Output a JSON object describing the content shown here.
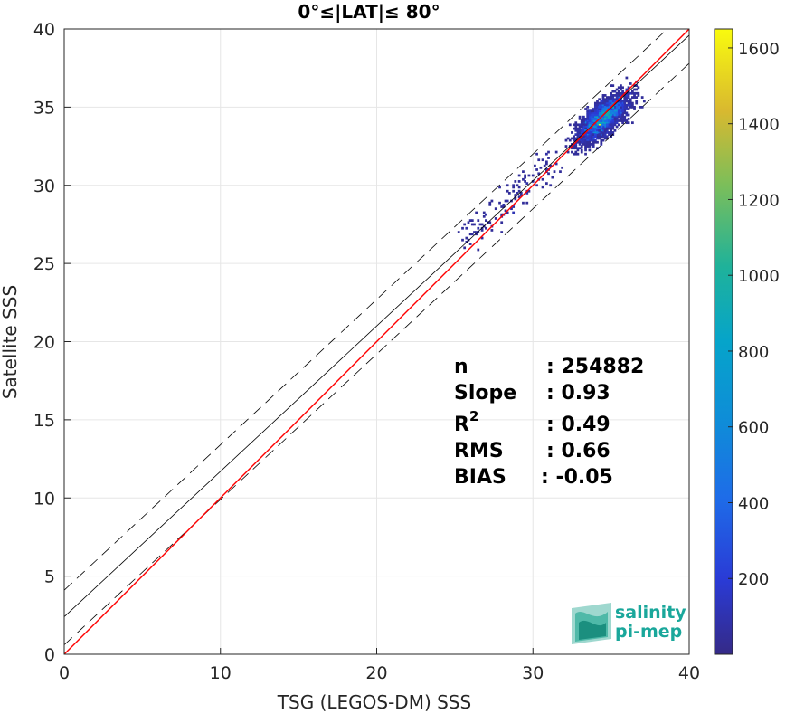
{
  "chart_data": {
    "type": "heatmap",
    "title": "0°≤|LAT|≤ 80°",
    "xlabel": "TSG (LEGOS-DM) SSS",
    "ylabel": "Satellite SSS",
    "xlim": [
      0,
      40
    ],
    "ylim": [
      0,
      40
    ],
    "xticks": [
      "0",
      "10",
      "20",
      "30",
      "40"
    ],
    "yticks": [
      "0",
      "5",
      "10",
      "15",
      "20",
      "25",
      "30",
      "35",
      "40"
    ],
    "grid": true,
    "colorbar": {
      "range": [
        0,
        1650
      ],
      "ticks": [
        "200",
        "400",
        "600",
        "800",
        "1000",
        "1200",
        "1400",
        "1600"
      ],
      "tick_values": [
        200,
        400,
        600,
        800,
        1000,
        1200,
        1400,
        1600
      ],
      "colormap": "parula"
    },
    "density_center": {
      "x": 34.5,
      "y": 34.3,
      "peak_count": 1650
    },
    "lines": {
      "one_to_one": {
        "slope": 1,
        "intercept": 0,
        "color": "#ff0000"
      },
      "fit": {
        "slope": 0.93,
        "intercept": 2.4,
        "color": "#000000"
      },
      "fit_upper": {
        "slope": 0.93,
        "intercept": 4.1,
        "style": "dashed"
      },
      "fit_lower": {
        "slope": 0.93,
        "intercept": 0.6,
        "style": "dashed"
      }
    },
    "stats": [
      {
        "label": "n",
        "value": ": 254882"
      },
      {
        "label": "Slope",
        "value": ": 0.93"
      },
      {
        "label": "R",
        "sup": "2",
        "value": ": 0.49"
      },
      {
        "label": "RMS",
        "value": ": 0.66"
      },
      {
        "label": "BIAS",
        "value": ": -0.05"
      }
    ]
  },
  "logo": {
    "line1": "salinity",
    "line2": "pi-mep"
  }
}
